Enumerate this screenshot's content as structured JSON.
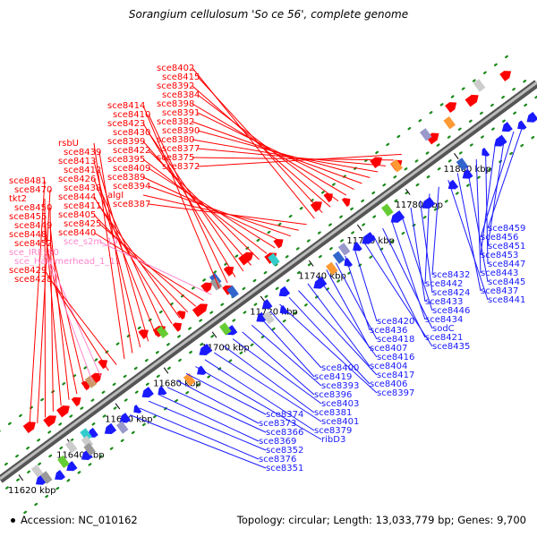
{
  "title": "Sorangium cellulosum 'So ce 56', complete genome",
  "footer": {
    "accession": "Accession: NC_010162",
    "stats": "Topology: circular; Length: 13,033,779 bp; Genes: 9,700"
  },
  "colors": {
    "forward_gene": "#ff0000",
    "reverse_gene": "#1a1aff",
    "forward_label": "#ff0000",
    "reverse_label": "#1a1aff",
    "rna_label": "#ff88cc",
    "backbone": "#888888",
    "tick_dot": "#1a8a1a"
  },
  "scale": {
    "kbp_start": 11614,
    "kbp_end": 11836
  },
  "scale_ticks": [
    {
      "kbp": 11620,
      "label": "11620 kbp"
    },
    {
      "kbp": 11640,
      "label": "11640 kbp"
    },
    {
      "kbp": 11660,
      "label": "11660 kbp"
    },
    {
      "kbp": 11680,
      "label": "11680 kbp"
    },
    {
      "kbp": 11700,
      "label": "11700 kbp"
    },
    {
      "kbp": 11720,
      "label": "11720 kbp"
    },
    {
      "kbp": 11740,
      "label": "11740 kbp"
    },
    {
      "kbp": 11760,
      "label": "11760 kbp"
    },
    {
      "kbp": 11780,
      "label": "11780 kbp"
    },
    {
      "kbp": 11800,
      "label": "11800 kbp"
    }
  ],
  "forward_labels": [
    {
      "text": "sce8481",
      "kind": "gene"
    },
    {
      "text": "sce8470",
      "kind": "gene"
    },
    {
      "text": "tkt2",
      "kind": "gene"
    },
    {
      "text": "sce8450",
      "kind": "gene"
    },
    {
      "text": "sce8455",
      "kind": "gene"
    },
    {
      "text": "sce8449",
      "kind": "gene"
    },
    {
      "text": "sce8448",
      "kind": "gene"
    },
    {
      "text": "sce8452",
      "kind": "gene"
    },
    {
      "text": "sce_IRE_60",
      "kind": "rna"
    },
    {
      "text": "sce_Hammerhead_1_11",
      "kind": "rna"
    },
    {
      "text": "sce8429",
      "kind": "gene"
    },
    {
      "text": "sce8428",
      "kind": "gene"
    },
    {
      "text": "rsbU",
      "kind": "gene"
    },
    {
      "text": "sce8439",
      "kind": "gene"
    },
    {
      "text": "sce8413",
      "kind": "gene"
    },
    {
      "text": "sce8412",
      "kind": "gene"
    },
    {
      "text": "sce8426",
      "kind": "gene"
    },
    {
      "text": "sce8438",
      "kind": "gene"
    },
    {
      "text": "sce8444",
      "kind": "gene"
    },
    {
      "text": "sce8411",
      "kind": "gene"
    },
    {
      "text": "sce8405",
      "kind": "gene"
    },
    {
      "text": "sce8425",
      "kind": "gene"
    },
    {
      "text": "sce8440",
      "kind": "gene"
    },
    {
      "text": "sce_s2m_19",
      "kind": "rna"
    },
    {
      "text": "sce8414",
      "kind": "gene"
    },
    {
      "text": "sce8410",
      "kind": "gene"
    },
    {
      "text": "sce8423",
      "kind": "gene"
    },
    {
      "text": "sce8430",
      "kind": "gene"
    },
    {
      "text": "sce8399",
      "kind": "gene"
    },
    {
      "text": "sce8422",
      "kind": "gene"
    },
    {
      "text": "sce8395",
      "kind": "gene"
    },
    {
      "text": "sce8409",
      "kind": "gene"
    },
    {
      "text": "sce8389",
      "kind": "gene"
    },
    {
      "text": "sce8394",
      "kind": "gene"
    },
    {
      "text": "algI",
      "kind": "gene"
    },
    {
      "text": "sce8387",
      "kind": "gene"
    },
    {
      "text": "sce8402",
      "kind": "gene"
    },
    {
      "text": "sce8415",
      "kind": "gene"
    },
    {
      "text": "sce8392",
      "kind": "gene"
    },
    {
      "text": "sce8384",
      "kind": "gene"
    },
    {
      "text": "sce8398",
      "kind": "gene"
    },
    {
      "text": "sce8391",
      "kind": "gene"
    },
    {
      "text": "sce8382",
      "kind": "gene"
    },
    {
      "text": "sce8390",
      "kind": "gene"
    },
    {
      "text": "sce8380",
      "kind": "gene"
    },
    {
      "text": "sce8377",
      "kind": "gene"
    },
    {
      "text": "sce8375",
      "kind": "gene"
    },
    {
      "text": "sce8372",
      "kind": "gene"
    }
  ],
  "reverse_labels": [
    "sce8459",
    "sce8456",
    "sce8451",
    "sce8453",
    "sce8447",
    "sce8443",
    "sce8445",
    "sce8437",
    "sce8441",
    "sce8432",
    "sce8442",
    "sce8424",
    "sce8433",
    "sce8446",
    "sce8434",
    "sodC",
    "sce8421",
    "sce8435",
    "sce8420",
    "sce8436",
    "sce8418",
    "sce8407",
    "sce8416",
    "sce8404",
    "sce8417",
    "sce8406",
    "sce8397",
    "sce8400",
    "sce8419",
    "sce8393",
    "sce8396",
    "sce8403",
    "sce8381",
    "sce8401",
    "sce8379",
    "ribD3",
    "sce8374",
    "sce8373",
    "sce8366",
    "sce8369",
    "sce8352",
    "sce8376",
    "sce8351"
  ]
}
